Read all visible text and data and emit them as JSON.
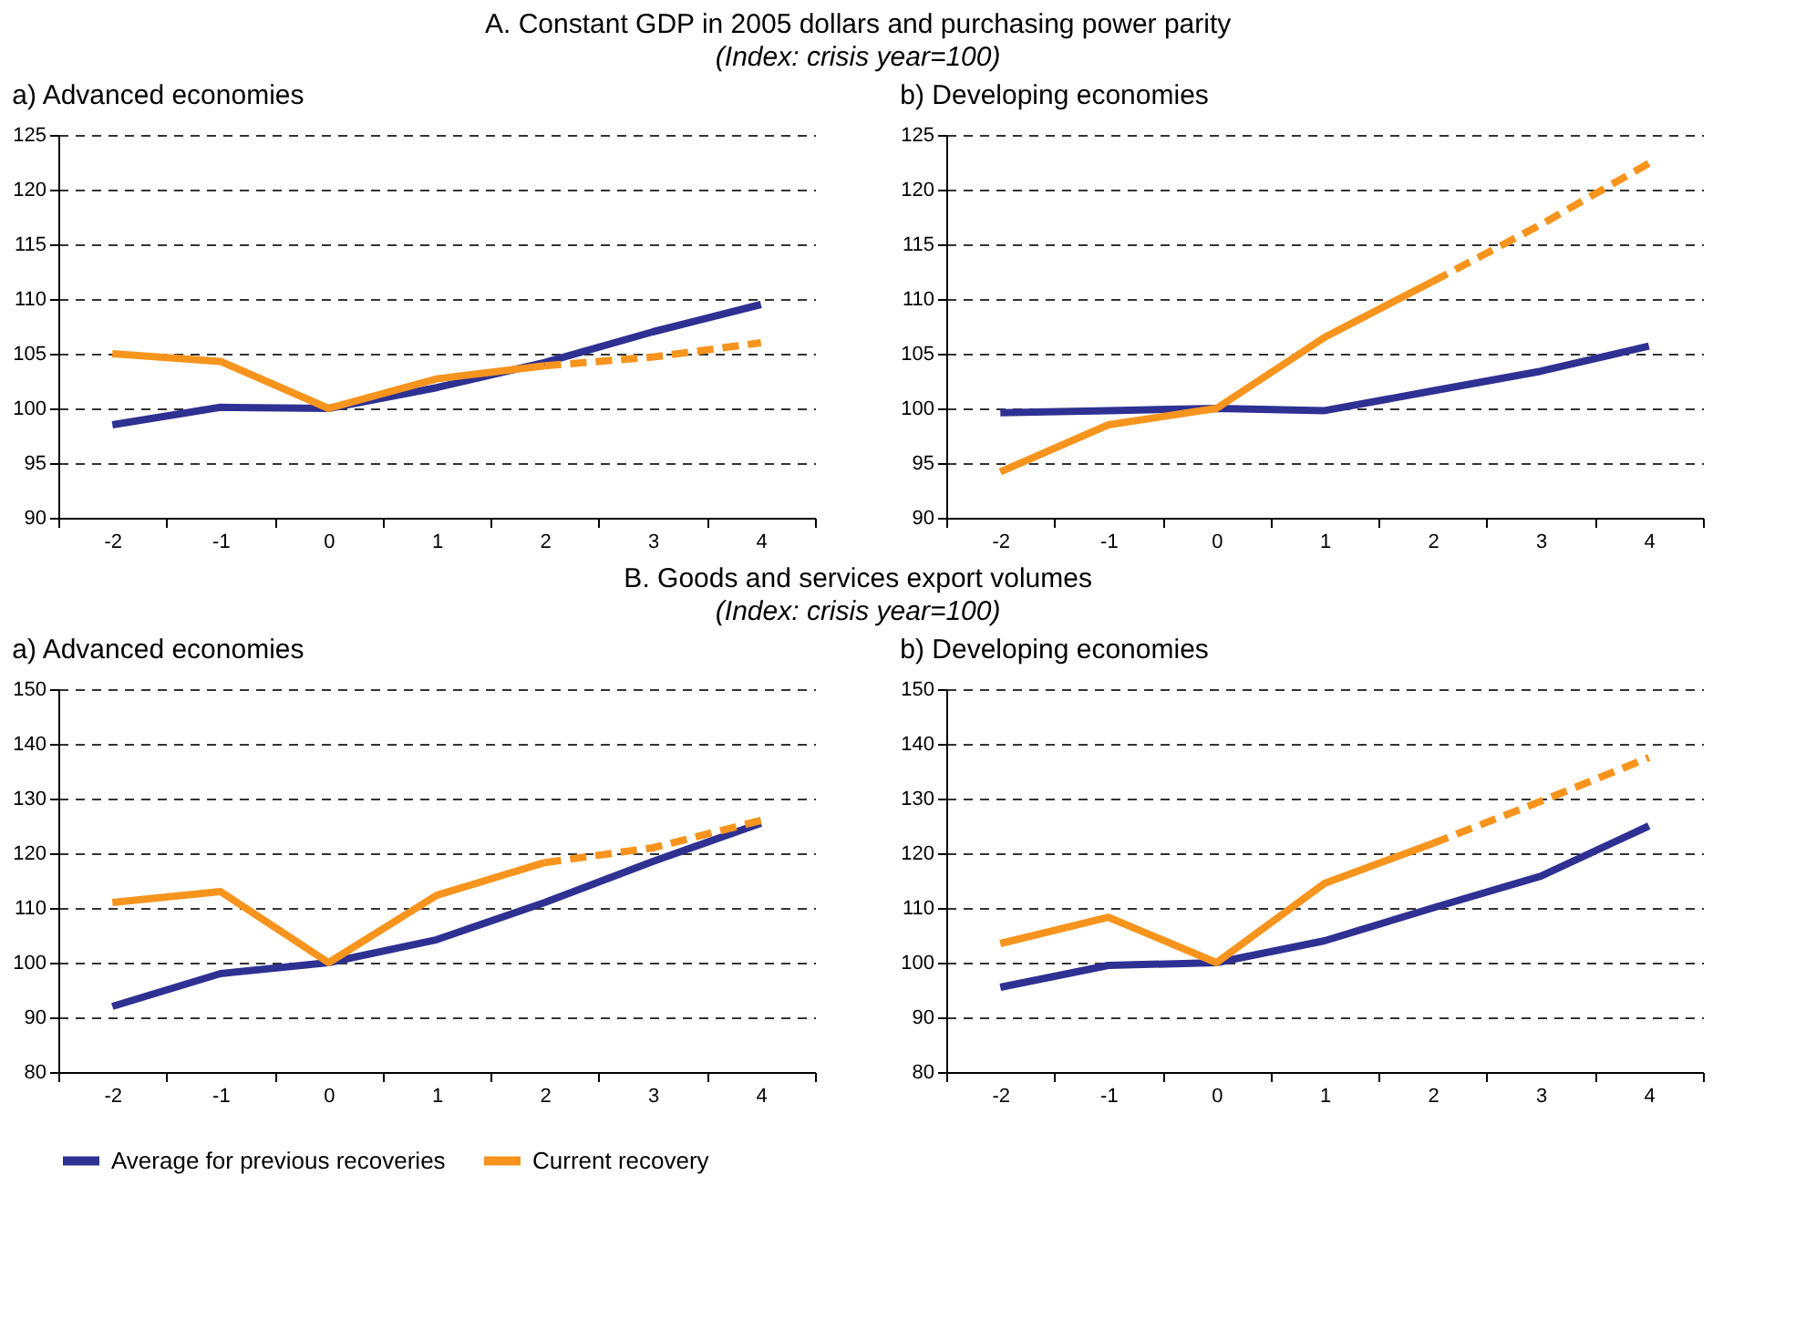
{
  "chart_data": [
    {
      "type": "line",
      "title": "a) Advanced economies",
      "annotations": [
        "A. Constant GDP in 2005 dollars and purchasing power parity",
        "(Index: crisis year=100)"
      ],
      "categories": [
        "-2",
        "-1",
        "0",
        "1",
        "2",
        "3",
        "4"
      ],
      "ylim": [
        90,
        125
      ],
      "yticks": [
        90,
        95,
        100,
        105,
        110,
        115,
        120,
        125
      ],
      "grid": "y",
      "legend": "bottom",
      "series": [
        {
          "name": "Average for previous recoveries",
          "color": "#2e3192",
          "line_style": "solid",
          "values": [
            98.5,
            100.1,
            100,
            101.9,
            104.2,
            107,
            109.5
          ]
        },
        {
          "name": "Current recovery",
          "color": "#f7941d",
          "line_style": "solid",
          "values": [
            105,
            104.3,
            100,
            102.7,
            103.9,
            null,
            null
          ]
        },
        {
          "color": "#f7941d",
          "line_style": "dashed",
          "values": [
            null,
            null,
            null,
            null,
            103.9,
            104.7,
            106
          ]
        }
      ]
    },
    {
      "type": "line",
      "title": "b) Developing economies",
      "categories": [
        "-2",
        "-1",
        "0",
        "1",
        "2",
        "3",
        "4"
      ],
      "ylim": [
        90,
        125
      ],
      "yticks": [
        90,
        95,
        100,
        105,
        110,
        115,
        120,
        125
      ],
      "grid": "y",
      "legend": "bottom",
      "series": [
        {
          "name": "Average for previous recoveries",
          "color": "#2e3192",
          "line_style": "solid",
          "values": [
            99.6,
            99.8,
            100,
            99.8,
            101.6,
            103.4,
            105.7
          ]
        },
        {
          "name": "Current recovery",
          "color": "#f7941d",
          "line_style": "solid",
          "values": [
            94.2,
            98.5,
            100,
            106.5,
            111.6,
            null,
            null
          ]
        },
        {
          "color": "#f7941d",
          "line_style": "dashed",
          "values": [
            null,
            null,
            null,
            null,
            111.6,
            116.8,
            122.4
          ]
        }
      ]
    },
    {
      "type": "line",
      "title": "a) Advanced economies",
      "annotations": [
        "B. Goods and services export volumes",
        "(Index: crisis year=100)"
      ],
      "categories": [
        "-2",
        "-1",
        "0",
        "1",
        "2",
        "3",
        "4"
      ],
      "ylim": [
        80,
        150
      ],
      "yticks": [
        80,
        90,
        100,
        110,
        120,
        130,
        140,
        150
      ],
      "grid": "y",
      "legend": "bottom",
      "series": [
        {
          "name": "Average for previous recoveries",
          "color": "#2e3192",
          "line_style": "solid",
          "values": [
            92,
            98,
            100,
            104.2,
            111,
            118.5,
            125.5
          ]
        },
        {
          "name": "Current recovery",
          "color": "#f7941d",
          "line_style": "solid",
          "values": [
            111,
            113,
            100,
            112.3,
            118.3,
            null,
            null
          ]
        },
        {
          "color": "#f7941d",
          "line_style": "dashed",
          "values": [
            null,
            null,
            null,
            null,
            118.3,
            121,
            126
          ]
        }
      ]
    },
    {
      "type": "line",
      "title": "b) Developing economies",
      "categories": [
        "-2",
        "-1",
        "0",
        "1",
        "2",
        "3",
        "4"
      ],
      "ylim": [
        80,
        150
      ],
      "yticks": [
        80,
        90,
        100,
        110,
        120,
        130,
        140,
        150
      ],
      "grid": "y",
      "legend": "bottom",
      "series": [
        {
          "name": "Average for previous recoveries",
          "color": "#2e3192",
          "line_style": "solid",
          "values": [
            95.5,
            99.5,
            100,
            104,
            110,
            115.8,
            125
          ]
        },
        {
          "name": "Current recovery",
          "color": "#f7941d",
          "line_style": "solid",
          "values": [
            103.5,
            108.3,
            100,
            114.5,
            121.8,
            null,
            null
          ]
        },
        {
          "color": "#f7941d",
          "line_style": "dashed",
          "values": [
            null,
            null,
            null,
            null,
            121.8,
            129.5,
            137.5
          ]
        }
      ]
    }
  ]
}
